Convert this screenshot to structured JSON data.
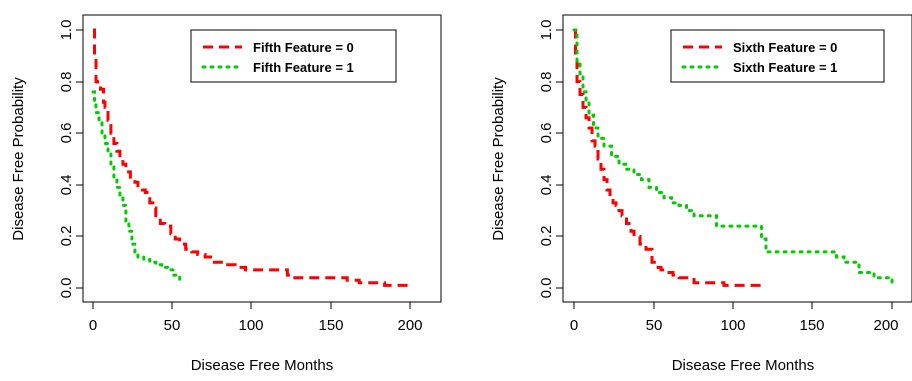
{
  "chart_data": [
    {
      "type": "line",
      "title": "",
      "xlabel": "Disease Free Months",
      "ylabel": "Disease Free Probability",
      "xlim": [
        0,
        212
      ],
      "ylim": [
        0,
        1.0
      ],
      "xticks": [
        0,
        50,
        100,
        150,
        200
      ],
      "yticks": [
        0.0,
        0.2,
        0.4,
        0.6,
        0.8,
        1.0
      ],
      "grid": false,
      "legend_position": "top-right",
      "series": [
        {
          "name": "Fifth Feature = 0",
          "color": "#ff0000",
          "line_style": "dashed",
          "x": [
            0,
            1,
            2,
            3,
            5,
            7,
            8,
            10,
            12,
            14,
            16,
            18,
            20,
            22,
            25,
            28,
            30,
            33,
            35,
            38,
            40,
            42,
            45,
            48,
            52,
            55,
            58,
            62,
            66,
            70,
            75,
            80,
            88,
            95,
            102,
            110,
            120,
            130,
            132,
            150,
            170,
            178,
            195,
            212
          ],
          "y": [
            1.0,
            0.9,
            0.8,
            0.79,
            0.77,
            0.72,
            0.7,
            0.65,
            0.6,
            0.56,
            0.53,
            0.5,
            0.48,
            0.45,
            0.42,
            0.41,
            0.39,
            0.38,
            0.37,
            0.33,
            0.31,
            0.28,
            0.25,
            0.24,
            0.21,
            0.19,
            0.17,
            0.15,
            0.14,
            0.13,
            0.12,
            0.1,
            0.09,
            0.08,
            0.07,
            0.07,
            0.07,
            0.05,
            0.04,
            0.04,
            0.03,
            0.02,
            0.01,
            0.01
          ]
        },
        {
          "name": "Fifth Feature = 1",
          "color": "#00cc00",
          "line_style": "dotted",
          "x": [
            0,
            1,
            2,
            4,
            6,
            8,
            10,
            12,
            14,
            16,
            18,
            20,
            22,
            24,
            26,
            28,
            30,
            34,
            38,
            42,
            46,
            50,
            54,
            58,
            60
          ],
          "y": [
            0.76,
            0.72,
            0.68,
            0.64,
            0.6,
            0.56,
            0.52,
            0.47,
            0.43,
            0.39,
            0.36,
            0.32,
            0.26,
            0.22,
            0.17,
            0.14,
            0.12,
            0.11,
            0.1,
            0.09,
            0.08,
            0.07,
            0.05,
            0.03,
            0.03
          ]
        }
      ]
    },
    {
      "type": "line",
      "title": "",
      "xlabel": "Disease Free Months",
      "ylabel": "Disease Free Probability",
      "xlim": [
        0,
        212
      ],
      "ylim": [
        0,
        1.0
      ],
      "xticks": [
        0,
        50,
        100,
        150,
        200
      ],
      "yticks": [
        0.0,
        0.2,
        0.4,
        0.6,
        0.8,
        1.0
      ],
      "grid": false,
      "legend_position": "top-right",
      "series": [
        {
          "name": "Sixth Feature = 0",
          "color": "#ff0000",
          "line_style": "dashed",
          "x": [
            0,
            1,
            2,
            4,
            6,
            8,
            10,
            12,
            14,
            16,
            18,
            20,
            22,
            24,
            26,
            28,
            30,
            32,
            35,
            38,
            40,
            44,
            48,
            52,
            55,
            58,
            62,
            66,
            70,
            75,
            80,
            90,
            100,
            110,
            120,
            128
          ],
          "y": [
            1.0,
            0.9,
            0.8,
            0.75,
            0.7,
            0.66,
            0.62,
            0.57,
            0.55,
            0.5,
            0.46,
            0.42,
            0.38,
            0.35,
            0.33,
            0.32,
            0.3,
            0.28,
            0.25,
            0.22,
            0.2,
            0.17,
            0.15,
            0.1,
            0.08,
            0.07,
            0.06,
            0.05,
            0.04,
            0.04,
            0.02,
            0.02,
            0.01,
            0.01,
            0.01,
            0.01
          ]
        },
        {
          "name": "Sixth Feature = 1",
          "color": "#00cc00",
          "line_style": "dotted",
          "x": [
            0,
            2,
            4,
            6,
            8,
            10,
            13,
            16,
            20,
            25,
            30,
            35,
            40,
            45,
            50,
            55,
            60,
            65,
            70,
            75,
            80,
            90,
            95,
            100,
            110,
            120,
            125,
            128,
            132,
            140,
            150,
            160,
            170,
            175,
            180,
            190,
            200,
            212
          ],
          "y": [
            1.0,
            0.88,
            0.83,
            0.76,
            0.72,
            0.67,
            0.62,
            0.58,
            0.55,
            0.51,
            0.48,
            0.46,
            0.44,
            0.42,
            0.39,
            0.37,
            0.35,
            0.33,
            0.32,
            0.3,
            0.28,
            0.28,
            0.24,
            0.24,
            0.24,
            0.24,
            0.19,
            0.14,
            0.14,
            0.14,
            0.14,
            0.14,
            0.14,
            0.12,
            0.1,
            0.06,
            0.04,
            0.01
          ]
        }
      ]
    }
  ]
}
